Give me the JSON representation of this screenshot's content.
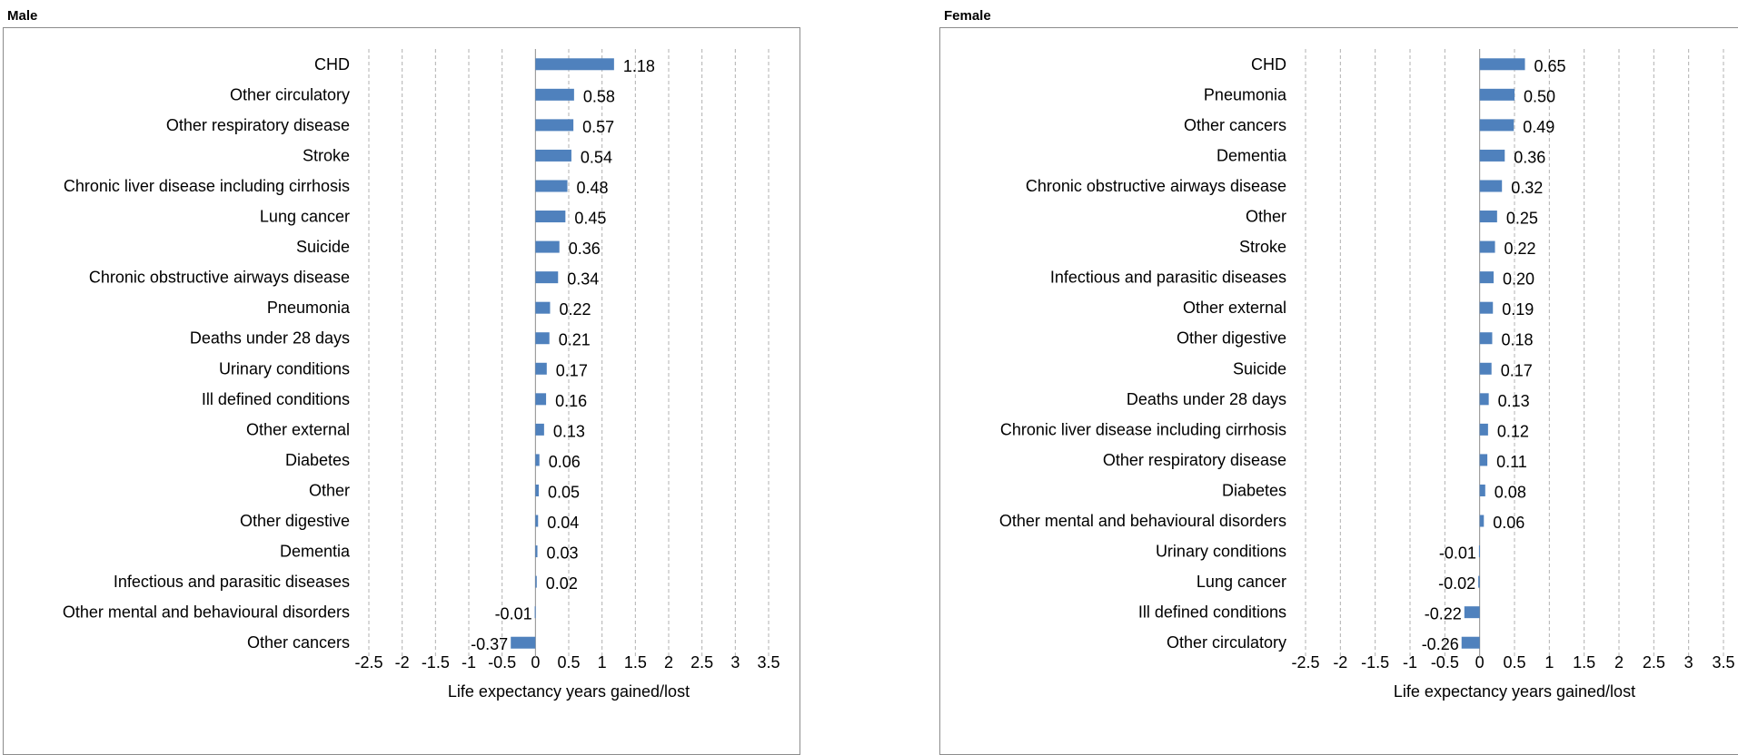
{
  "panels": {
    "male": {
      "title": "Male"
    },
    "female": {
      "title": "Female"
    }
  },
  "chart_data": [
    {
      "type": "bar",
      "orientation": "horizontal",
      "title": "Male",
      "xlabel": "Life expectancy years gained/lost",
      "ylabel": "",
      "xlim": [
        -2.5,
        3.5
      ],
      "xticks": [
        "-2.5",
        "-2",
        "-1.5",
        "-1",
        "-0.5",
        "0",
        "0.5",
        "1",
        "1.5",
        "2",
        "2.5",
        "3",
        "3.5"
      ],
      "grid": true,
      "bar_color": "#4F81BD",
      "categories": [
        "CHD",
        "Other circulatory",
        "Other respiratory disease",
        "Stroke",
        "Chronic liver disease including cirrhosis",
        "Lung cancer",
        "Suicide",
        "Chronic obstructive airways disease",
        "Pneumonia",
        "Deaths under 28 days",
        "Urinary conditions",
        "Ill defined conditions",
        "Other external",
        "Diabetes",
        "Other",
        "Other digestive",
        "Dementia",
        "Infectious and parasitic diseases",
        "Other mental and behavioural disorders",
        "Other cancers"
      ],
      "values": [
        1.18,
        0.58,
        0.57,
        0.54,
        0.48,
        0.45,
        0.36,
        0.34,
        0.22,
        0.21,
        0.17,
        0.16,
        0.13,
        0.06,
        0.05,
        0.04,
        0.03,
        0.02,
        -0.01,
        -0.37
      ],
      "value_labels": [
        "1.18",
        "0.58",
        "0.57",
        "0.54",
        "0.48",
        "0.45",
        "0.36",
        "0.34",
        "0.22",
        "0.21",
        "0.17",
        "0.16",
        "0.13",
        "0.06",
        "0.05",
        "0.04",
        "0.03",
        "0.02",
        "-0.01",
        "-0.37"
      ]
    },
    {
      "type": "bar",
      "orientation": "horizontal",
      "title": "Female",
      "xlabel": "Life expectancy years gained/lost",
      "ylabel": "",
      "xlim": [
        -2.5,
        3.5
      ],
      "xticks": [
        "-2.5",
        "-2",
        "-1.5",
        "-1",
        "-0.5",
        "0",
        "0.5",
        "1",
        "1.5",
        "2",
        "2.5",
        "3",
        "3.5"
      ],
      "grid": true,
      "bar_color": "#4F81BD",
      "categories": [
        "CHD",
        "Pneumonia",
        "Other cancers",
        "Dementia",
        "Chronic obstructive airways disease",
        "Other",
        "Stroke",
        "Infectious and parasitic diseases",
        "Other external",
        "Other digestive",
        "Suicide",
        "Deaths under 28 days",
        "Chronic liver disease including cirrhosis",
        "Other respiratory disease",
        "Diabetes",
        "Other mental and behavioural disorders",
        "Urinary conditions",
        "Lung cancer",
        "Ill defined conditions",
        "Other circulatory"
      ],
      "values": [
        0.65,
        0.5,
        0.49,
        0.36,
        0.32,
        0.25,
        0.22,
        0.2,
        0.19,
        0.18,
        0.17,
        0.13,
        0.12,
        0.11,
        0.08,
        0.06,
        -0.01,
        -0.02,
        -0.22,
        -0.26
      ],
      "value_labels": [
        "0.65",
        "0.50",
        "0.49",
        "0.36",
        "0.32",
        "0.25",
        "0.22",
        "0.20",
        "0.19",
        "0.18",
        "0.17",
        "0.13",
        "0.12",
        "0.11",
        "0.08",
        "0.06",
        "-0.01",
        "-0.02",
        "-0.22",
        "-0.26"
      ]
    }
  ]
}
